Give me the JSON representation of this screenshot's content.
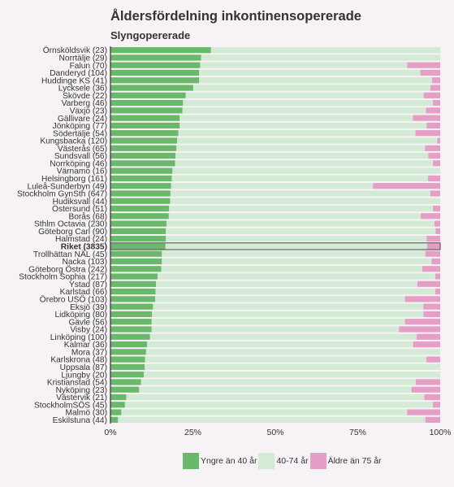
{
  "chart_data": {
    "type": "bar",
    "orientation": "horizontal",
    "stacked": true,
    "title": "Åldersfördelning inkontinensopererade",
    "subtitle": "Slyngopererade",
    "xlim": [
      0,
      100
    ],
    "x_ticks": [
      "0%",
      "25%",
      "50%",
      "75%",
      "100%"
    ],
    "x_tick_values": [
      0,
      25,
      50,
      75,
      100
    ],
    "highlight_category": "Riket (3835)",
    "colors": {
      "young": "#6ab86a",
      "middle": "#d3ead4",
      "old": "#e59ec6"
    },
    "legend_position": "bottom",
    "categories": [
      "Örnsköldsvik (23)",
      "Norrtälje (29)",
      "Falun (70)",
      "Danderyd (104)",
      "Huddinge KS (41)",
      "Lycksele (36)",
      "Skövde (22)",
      "Varberg (46)",
      "Växjö (23)",
      "Gällivare (24)",
      "Jönköping (77)",
      "Södertälje (54)",
      "Kungsbacka (120)",
      "Västerås (65)",
      "Sundsvall (56)",
      "Norrköping (46)",
      "Värnamo (16)",
      "Helsingborg (161)",
      "Luleå-Sunderbyn (49)",
      "Stockholm GynSth (647)",
      "Hudiksvall (44)",
      "Östersund (51)",
      "Borås (68)",
      "Sthlm Octavia (230)",
      "Göteborg Carl (90)",
      "Halmstad (24)",
      "Riket (3835)",
      "Trollhättan NÄL (45)",
      "Nacka (103)",
      "Göteborg Östra (242)",
      "Stockholm Sophia (217)",
      "Ystad (87)",
      "Karlstad (66)",
      "Örebro USÖ (103)",
      "Eksjö (39)",
      "Lidköping (80)",
      "Gävle (56)",
      "Visby (24)",
      "Linköping (100)",
      "Kalmar (36)",
      "Mora (37)",
      "Karlskrona (48)",
      "Uppsala (87)",
      "Ljungby (20)",
      "Kristianstad (54)",
      "Nyköping (23)",
      "Västervik (21)",
      "StockholmSÖS (45)",
      "Malmö (30)",
      "Eskilstuna (44)"
    ],
    "series": [
      {
        "name": "Yngre än 40 år",
        "values": [
          30.5,
          27.5,
          27.2,
          26.9,
          26.9,
          25.1,
          22.8,
          22.0,
          21.8,
          21.0,
          21.0,
          20.6,
          20.2,
          20.0,
          19.7,
          19.6,
          18.8,
          18.6,
          18.4,
          18.2,
          18.1,
          17.8,
          17.7,
          17.0,
          16.8,
          16.8,
          16.7,
          15.6,
          15.6,
          15.4,
          14.3,
          13.8,
          13.7,
          13.6,
          12.9,
          12.6,
          12.5,
          12.5,
          12.0,
          11.1,
          10.8,
          10.5,
          10.4,
          10.1,
          9.3,
          8.7,
          4.8,
          4.4,
          3.3,
          2.3
        ]
      },
      {
        "name": "40-74 år",
        "values": [
          69.5,
          72.5,
          62.8,
          67.1,
          70.6,
          71.9,
          72.2,
          75.8,
          73.9,
          70.7,
          74.9,
          71.9,
          78.9,
          75.4,
          76.7,
          78.2,
          81.2,
          77.7,
          61.2,
          78.8,
          81.9,
          80.0,
          76.4,
          81.3,
          81.8,
          79.1,
          79.3,
          79.9,
          81.8,
          79.2,
          84.2,
          79.3,
          84.8,
          75.7,
          82.0,
          82.3,
          76.8,
          75.0,
          80.8,
          80.7,
          89.2,
          85.3,
          89.6,
          89.9,
          83.3,
          82.6,
          90.4,
          93.4,
          86.7,
          93.2
        ]
      },
      {
        "name": "Äldre än 75 år",
        "values": [
          0.0,
          0.0,
          10.0,
          6.0,
          2.5,
          3.0,
          5.0,
          2.2,
          4.3,
          8.3,
          4.1,
          7.5,
          0.9,
          4.6,
          3.6,
          2.2,
          0.0,
          3.7,
          20.4,
          3.0,
          0.0,
          2.2,
          5.9,
          1.7,
          1.4,
          4.1,
          4.0,
          4.5,
          2.6,
          5.4,
          1.5,
          6.9,
          1.5,
          10.7,
          5.1,
          5.1,
          10.7,
          12.5,
          7.2,
          8.2,
          0.0,
          4.2,
          0.0,
          0.0,
          7.4,
          8.7,
          4.8,
          2.2,
          10.0,
          4.5
        ]
      }
    ]
  }
}
